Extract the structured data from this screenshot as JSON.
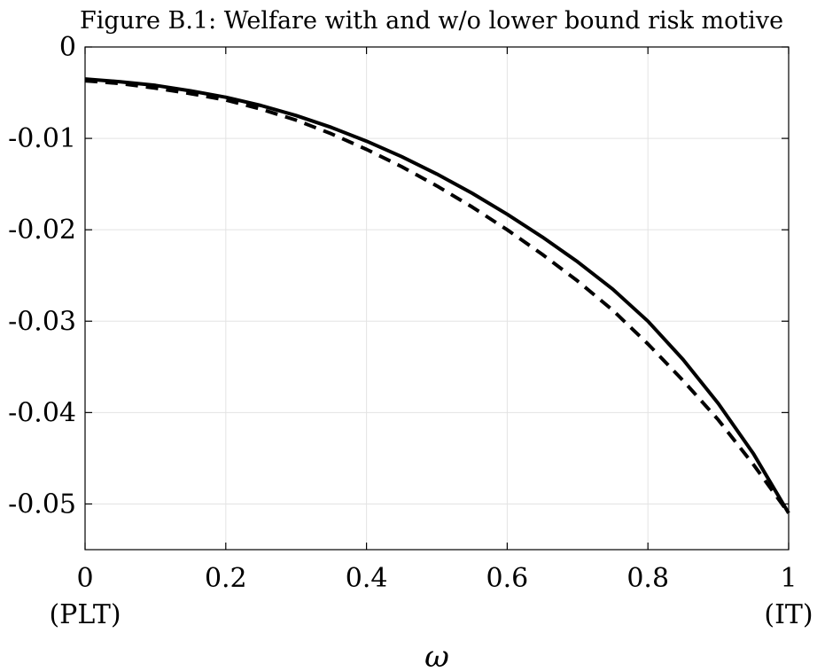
{
  "chart_data": {
    "type": "line",
    "title": "Figure B.1: Welfare with and w/o lower bound risk motive",
    "xlabel": "ω",
    "ylabel": "",
    "xlim": [
      0,
      1
    ],
    "ylim": [
      -0.055,
      0
    ],
    "grid": true,
    "legend": "none",
    "xticks": [
      0,
      0.2,
      0.4,
      0.6,
      0.8,
      1
    ],
    "xtick_labels": [
      "0",
      "0.2",
      "0.4",
      "0.6",
      "0.8",
      "1"
    ],
    "xtick_sublabels": {
      "left": "(PLT)",
      "right": "(IT)"
    },
    "yticks": [
      0,
      -0.01,
      -0.02,
      -0.03,
      -0.04,
      -0.05
    ],
    "ytick_labels": [
      "0",
      "-0.01",
      "-0.02",
      "-0.03",
      "-0.04",
      "-0.05"
    ],
    "x": [
      0,
      0.05,
      0.1,
      0.15,
      0.2,
      0.25,
      0.3,
      0.35,
      0.4,
      0.45,
      0.5,
      0.55,
      0.6,
      0.65,
      0.7,
      0.75,
      0.8,
      0.85,
      0.9,
      0.95,
      1.0
    ],
    "series": [
      {
        "style": "solid",
        "color": "#000000",
        "values": [
          -0.0035,
          -0.0038,
          -0.0042,
          -0.0048,
          -0.0055,
          -0.0064,
          -0.0075,
          -0.0088,
          -0.0103,
          -0.012,
          -0.0139,
          -0.016,
          -0.0183,
          -0.0208,
          -0.0235,
          -0.0265,
          -0.03,
          -0.0342,
          -0.039,
          -0.0445,
          -0.051
        ]
      },
      {
        "style": "dashed",
        "color": "#000000",
        "values": [
          -0.0037,
          -0.004,
          -0.0045,
          -0.0051,
          -0.0058,
          -0.0068,
          -0.008,
          -0.0095,
          -0.0112,
          -0.0131,
          -0.0152,
          -0.0175,
          -0.02,
          -0.0227,
          -0.0256,
          -0.0288,
          -0.0325,
          -0.0365,
          -0.0408,
          -0.0457,
          -0.051
        ]
      }
    ]
  }
}
